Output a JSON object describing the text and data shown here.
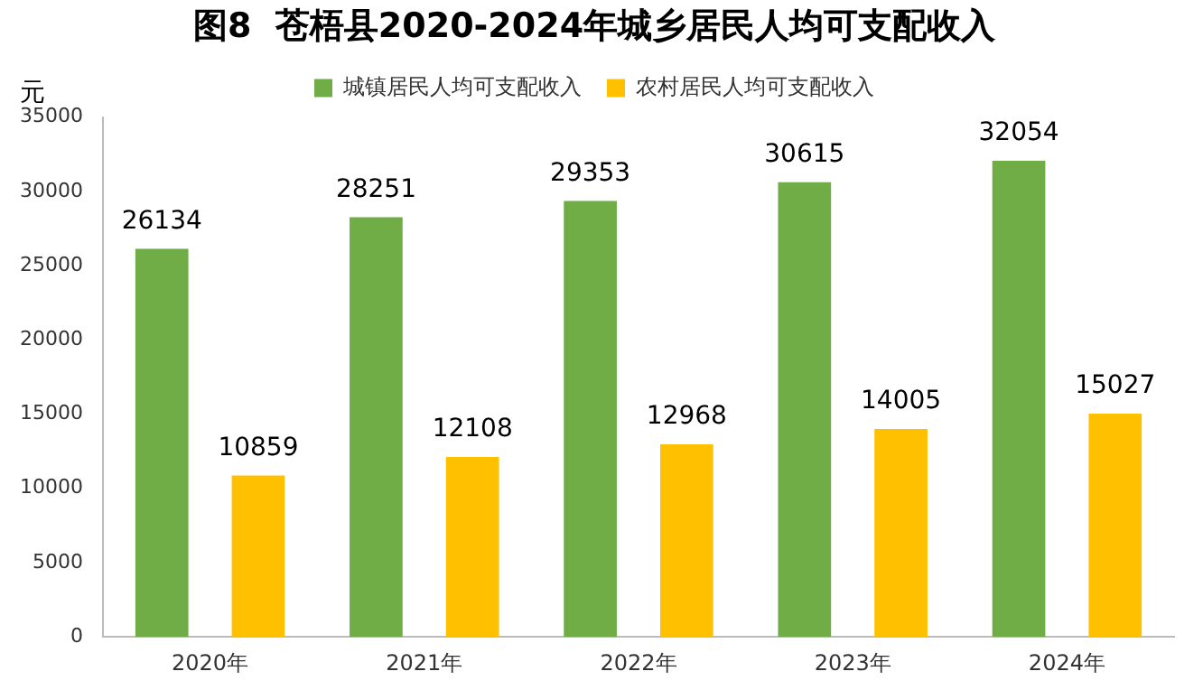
{
  "chart_data": {
    "type": "bar",
    "title": "图8  苍梧县2020-2024年城乡居民人均可支配收入",
    "ylabel": "元",
    "categories": [
      "2020年",
      "2021年",
      "2022年",
      "2023年",
      "2024年"
    ],
    "series": [
      {
        "name": "城镇居民人均可支配收入",
        "color": "#70ad47",
        "values": [
          26134,
          28251,
          29353,
          30615,
          32054
        ]
      },
      {
        "name": "农村居民人均可支配收入",
        "color": "#ffc000",
        "values": [
          10859,
          12108,
          12968,
          14005,
          15027
        ]
      }
    ],
    "ylim": [
      0,
      35000
    ],
    "yticks": [
      0,
      5000,
      10000,
      15000,
      20000,
      25000,
      30000,
      35000
    ],
    "grid": false,
    "legend": "top",
    "data_labels": true
  }
}
